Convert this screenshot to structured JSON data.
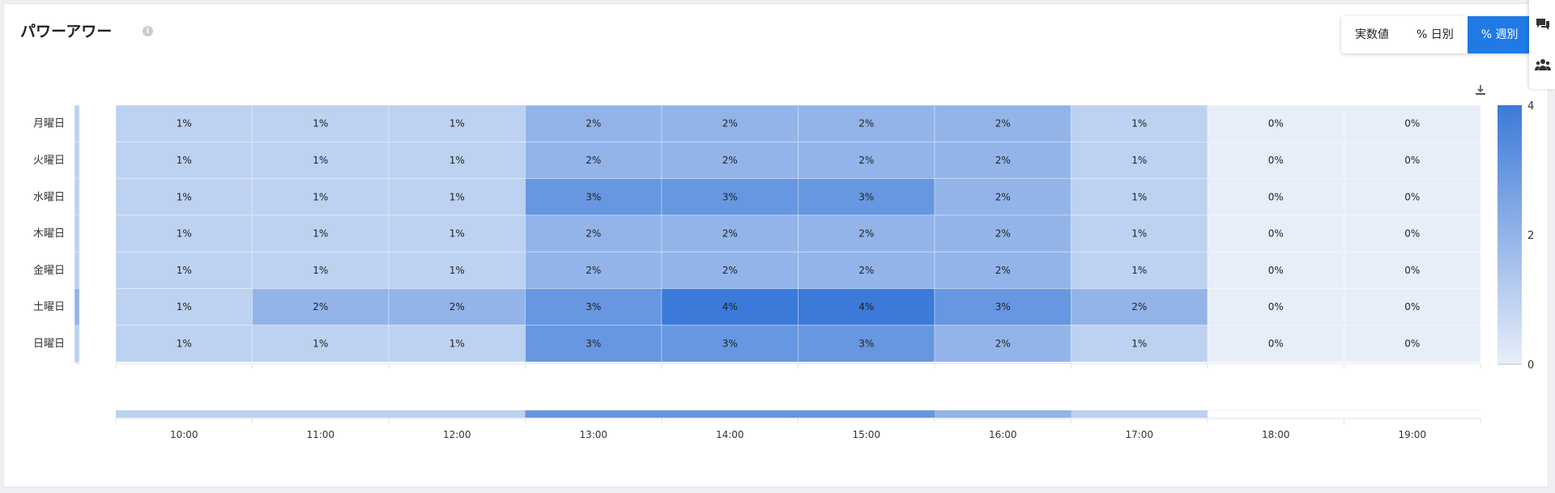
{
  "header": {
    "title": "パワーアワー",
    "info_icon": "info-icon"
  },
  "toggle": {
    "options": [
      "実数値",
      "% 日別",
      "% 週別"
    ],
    "selected": "% 週別"
  },
  "icons": {
    "side_top": "chat-icon",
    "side_bottom": "users-icon",
    "download": "download-icon"
  },
  "colors": {
    "accent": "#1f7ae6",
    "scale_low": "#e8eef9",
    "scale_high": "#3b7ad8"
  },
  "chart_data": {
    "type": "heatmap",
    "x": [
      "10:00",
      "11:00",
      "12:00",
      "13:00",
      "14:00",
      "15:00",
      "16:00",
      "17:00",
      "18:00",
      "19:00"
    ],
    "y": [
      "月曜日",
      "火曜日",
      "水曜日",
      "木曜日",
      "金曜日",
      "土曜日",
      "日曜日"
    ],
    "values": [
      [
        1,
        1,
        1,
        2,
        2,
        2,
        2,
        1,
        0,
        0
      ],
      [
        1,
        1,
        1,
        2,
        2,
        2,
        2,
        1,
        0,
        0
      ],
      [
        1,
        1,
        1,
        3,
        3,
        3,
        2,
        1,
        0,
        0
      ],
      [
        1,
        1,
        1,
        2,
        2,
        2,
        2,
        1,
        0,
        0
      ],
      [
        1,
        1,
        1,
        2,
        2,
        2,
        2,
        1,
        0,
        0
      ],
      [
        1,
        2,
        2,
        3,
        4,
        4,
        3,
        2,
        0,
        0
      ],
      [
        1,
        1,
        1,
        3,
        3,
        3,
        2,
        1,
        0,
        0
      ]
    ],
    "labels": [
      [
        "1%",
        "1%",
        "1%",
        "2%",
        "2%",
        "2%",
        "2%",
        "1%",
        "0%",
        "0%"
      ],
      [
        "1%",
        "1%",
        "1%",
        "2%",
        "2%",
        "2%",
        "2%",
        "1%",
        "0%",
        "0%"
      ],
      [
        "1%",
        "1%",
        "1%",
        "3%",
        "3%",
        "3%",
        "2%",
        "1%",
        "0%",
        "0%"
      ],
      [
        "1%",
        "1%",
        "1%",
        "2%",
        "2%",
        "2%",
        "2%",
        "1%",
        "0%",
        "0%"
      ],
      [
        "1%",
        "1%",
        "1%",
        "2%",
        "2%",
        "2%",
        "2%",
        "1%",
        "0%",
        "0%"
      ],
      [
        "1%",
        "2%",
        "2%",
        "3%",
        "4%",
        "4%",
        "3%",
        "2%",
        "0%",
        "0%"
      ],
      [
        "1%",
        "1%",
        "1%",
        "3%",
        "3%",
        "3%",
        "2%",
        "1%",
        "0%",
        "0%"
      ]
    ],
    "row_totals": [
      1,
      1,
      1,
      1,
      1,
      2,
      1
    ],
    "col_totals": [
      1,
      1,
      1,
      3,
      3,
      3,
      2,
      1,
      0,
      0
    ],
    "color_scale": {
      "min": 0,
      "max": 4,
      "ticks": [
        0,
        2,
        4
      ]
    },
    "legend": "right"
  }
}
